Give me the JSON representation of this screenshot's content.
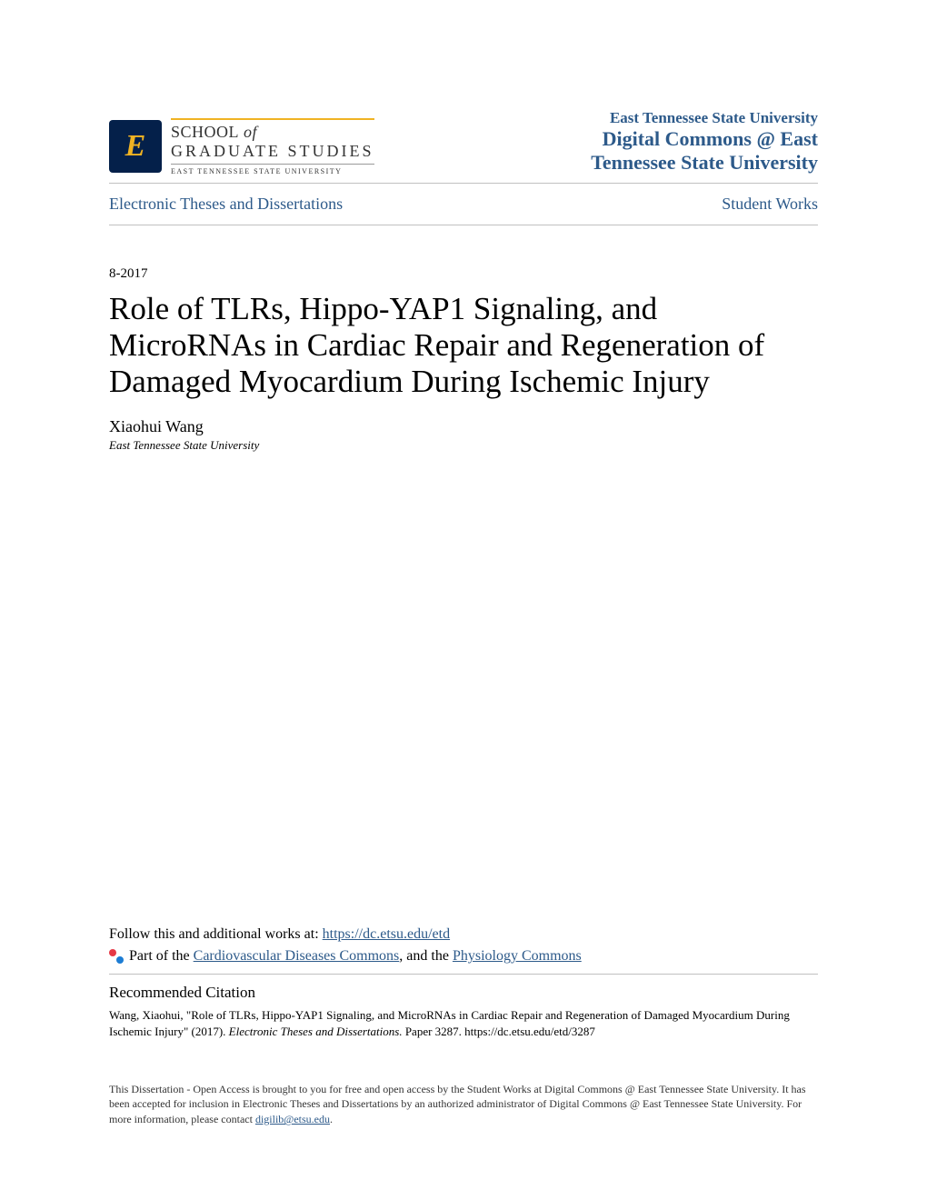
{
  "logo": {
    "letter": "E",
    "school_label_top": "SCHOOL",
    "school_label_of": " of",
    "school_label_bottom": "GRADUATE STUDIES",
    "university_sub": "EAST TENNESSEE STATE UNIVERSITY"
  },
  "institution": {
    "name": "East Tennessee State University",
    "repository_line1": "Digital Commons @ East",
    "repository_line2": "Tennessee State University"
  },
  "breadcrumb": {
    "left": "Electronic Theses and Dissertations",
    "right": "Student Works"
  },
  "date": "8-2017",
  "title": "Role of TLRs, Hippo-YAP1 Signaling, and MicroRNAs in Cardiac Repair and Regeneration of Damaged Myocardium During Ischemic Injury",
  "author": {
    "name": "Xiaohui Wang",
    "affiliation": "East Tennessee State University"
  },
  "follow": {
    "prefix": "Follow this and additional works at: ",
    "url": "https://dc.etsu.edu/etd"
  },
  "part_of": {
    "prefix": "Part of the ",
    "link1": "Cardiovascular Diseases Commons",
    "mid": ", and the ",
    "link2": "Physiology Commons"
  },
  "citation": {
    "heading": "Recommended Citation",
    "text_pre": "Wang, Xiaohui, \"Role of TLRs, Hippo-YAP1 Signaling, and MicroRNAs in Cardiac Repair and Regeneration of Damaged Myocardium During Ischemic Injury\" (2017). ",
    "text_italic": "Electronic Theses and Dissertations.",
    "text_post": " Paper 3287. https://dc.etsu.edu/etd/3287"
  },
  "footer": {
    "text_pre": "This Dissertation - Open Access is brought to you for free and open access by the Student Works at Digital Commons @ East Tennessee State University. It has been accepted for inclusion in Electronic Theses and Dissertations by an authorized administrator of Digital Commons @ East Tennessee State University. For more information, please contact ",
    "email": "digilib@etsu.edu",
    "text_post": "."
  },
  "colors": {
    "link_blue": "#2d5a8a",
    "logo_bg": "#04204a",
    "logo_gold": "#f0b323",
    "hr": "#c0c0c0"
  }
}
